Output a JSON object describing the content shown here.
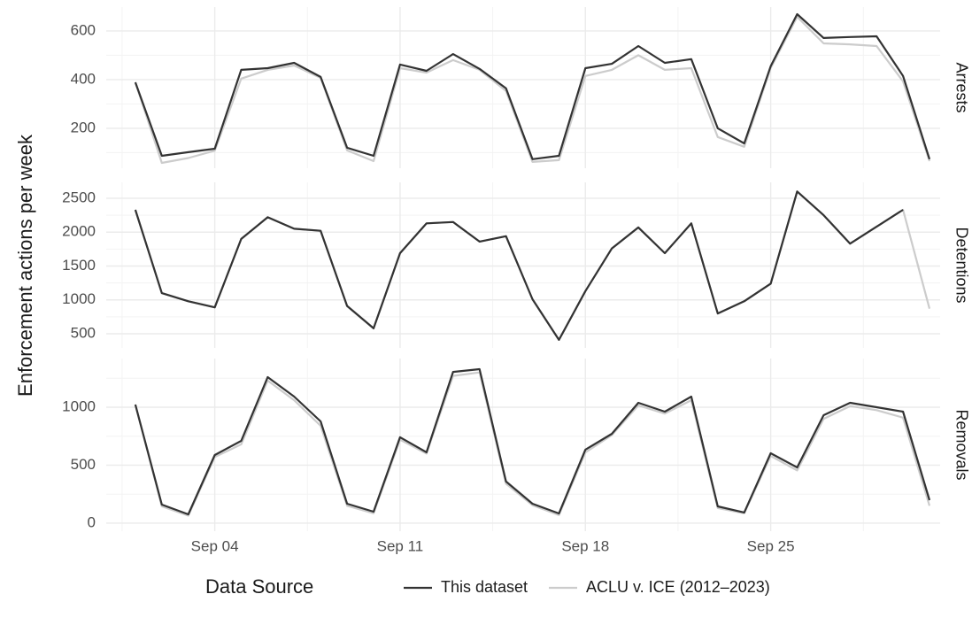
{
  "chart_data": {
    "type": "line",
    "y_label": "Enforcement actions per week",
    "legend_title": "Data Source",
    "x": [
      1,
      2,
      3,
      4,
      5,
      6,
      7,
      8,
      9,
      10,
      11,
      12,
      13,
      14,
      15,
      16,
      17,
      18,
      19,
      20,
      21,
      22,
      23,
      24,
      25,
      26,
      27,
      28,
      29,
      30,
      31
    ],
    "xlim": [
      -0.1,
      31.4
    ],
    "xticks": [
      {
        "value": 4,
        "label": "Sep 04"
      },
      {
        "value": 11,
        "label": "Sep 11"
      },
      {
        "value": 18,
        "label": "Sep 18"
      },
      {
        "value": 25,
        "label": "Sep 25"
      }
    ],
    "grid": true,
    "series": [
      {
        "name": "This dataset",
        "color": "#333333"
      },
      {
        "name": "ACLU v. ICE (2012–2023)",
        "color": "#cccccc"
      }
    ],
    "facets": [
      {
        "label": "Arrests",
        "ylim": [
          36,
          698
        ],
        "yticks": [
          200,
          400,
          600
        ],
        "values": [
          [
            389,
            87,
            102,
            116,
            440,
            447,
            469,
            411,
            120,
            87,
            462,
            436,
            505,
            444,
            364,
            73,
            87,
            447,
            465,
            538,
            469,
            484,
            200,
            138,
            455,
            669,
            571,
            575,
            578,
            415,
            73
          ],
          [
            389,
            58,
            78,
            108,
            404,
            440,
            458,
            407,
            109,
            65,
            447,
            429,
            480,
            440,
            353,
            62,
            69,
            415,
            440,
            500,
            440,
            447,
            164,
            124,
            447,
            658,
            549,
            545,
            538,
            393,
            65
          ]
        ]
      },
      {
        "label": "Detentions",
        "ylim": [
          291,
          2735
        ],
        "yticks": [
          500,
          1000,
          1500,
          2000,
          2500
        ],
        "values": [
          [
            2330,
            1100,
            980,
            890,
            1900,
            2220,
            2050,
            2020,
            910,
            580,
            1690,
            2130,
            2150,
            1860,
            1940,
            1010,
            410,
            1130,
            1760,
            2070,
            1690,
            2130,
            800,
            980,
            1240,
            2600,
            2250,
            1830,
            2080,
            2330,
            null
          ],
          [
            2330,
            1100,
            980,
            890,
            1900,
            2220,
            2050,
            2020,
            910,
            580,
            1690,
            2130,
            2150,
            1860,
            1940,
            1010,
            410,
            1130,
            1760,
            2070,
            1690,
            2130,
            800,
            980,
            1240,
            2600,
            2250,
            1830,
            2080,
            2330,
            870
          ]
        ]
      },
      {
        "label": "Removals",
        "ylim": [
          -69,
          1420
        ],
        "yticks": [
          0,
          500,
          1000
        ],
        "values": [
          [
            1023,
            160,
            76,
            588,
            710,
            1260,
            1092,
            878,
            168,
            99,
            741,
            611,
            1305,
            1328,
            359,
            168,
            84,
            634,
            771,
            1038,
            962,
            1092,
            145,
            92,
            603,
            481,
            931,
            1038,
            1000,
            962,
            198
          ],
          [
            1023,
            145,
            65,
            570,
            680,
            1230,
            1060,
            840,
            150,
            85,
            720,
            600,
            1270,
            1300,
            340,
            155,
            70,
            610,
            760,
            1015,
            945,
            1060,
            130,
            85,
            580,
            455,
            900,
            1010,
            975,
            910,
            150
          ]
        ]
      }
    ]
  }
}
